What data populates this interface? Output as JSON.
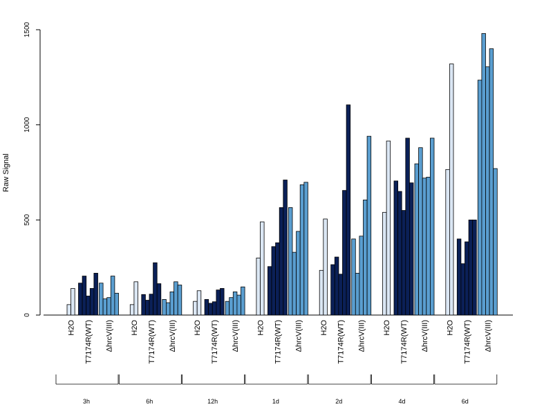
{
  "chart_data": {
    "type": "bar",
    "ylabel": "Raw Signal",
    "xlabel": "",
    "ylim": [
      0,
      1500
    ],
    "yticks": [
      0,
      500,
      1000,
      1500
    ],
    "grid": false,
    "legend": "none",
    "conditions": [
      "H2O",
      "T7174R(WT)",
      "ΔhrcV(III)"
    ],
    "condition_colors": {
      "H2O": "#dbe7f4",
      "T7174R(WT)": "#0b2057",
      "ΔhrcV(III)": "#5a9ed0"
    },
    "groups": [
      {
        "time": "3h",
        "H2O": [
          55,
          140
        ],
        "T7174R(WT)": [
          168,
          205,
          100,
          140,
          220
        ],
        "ΔhrcV(III)": [
          168,
          85,
          92,
          205,
          115
        ]
      },
      {
        "time": "6h",
        "H2O": [
          55,
          175
        ],
        "T7174R(WT)": [
          108,
          78,
          110,
          275,
          165
        ],
        "ΔhrcV(III)": [
          82,
          65,
          122,
          175,
          158
        ]
      },
      {
        "time": "12h",
        "H2O": [
          72,
          128
        ],
        "T7174R(WT)": [
          82,
          62,
          70,
          132,
          140
        ],
        "ΔhrcV(III)": [
          72,
          92,
          122,
          105,
          148
        ]
      },
      {
        "time": "1d",
        "H2O": [
          300,
          490
        ],
        "T7174R(WT)": [
          255,
          360,
          380,
          565,
          710
        ],
        "ΔhrcV(III)": [
          565,
          330,
          440,
          685,
          698
        ]
      },
      {
        "time": "2d",
        "H2O": [
          235,
          505
        ],
        "T7174R(WT)": [
          265,
          305,
          215,
          655,
          1105
        ],
        "ΔhrcV(III)": [
          400,
          220,
          415,
          605,
          940
        ]
      },
      {
        "time": "4d",
        "H2O": [
          540,
          915
        ],
        "T7174R(WT)": [
          705,
          650,
          550,
          930,
          695
        ],
        "ΔhrcV(III)": [
          795,
          880,
          720,
          725,
          930
        ]
      },
      {
        "time": "6d",
        "H2O": [
          765,
          1320
        ],
        "T7174R(WT)": [
          400,
          270,
          385,
          500,
          500
        ],
        "ΔhrcV(III)": [
          1235,
          1480,
          1305,
          1400,
          770
        ]
      }
    ]
  }
}
